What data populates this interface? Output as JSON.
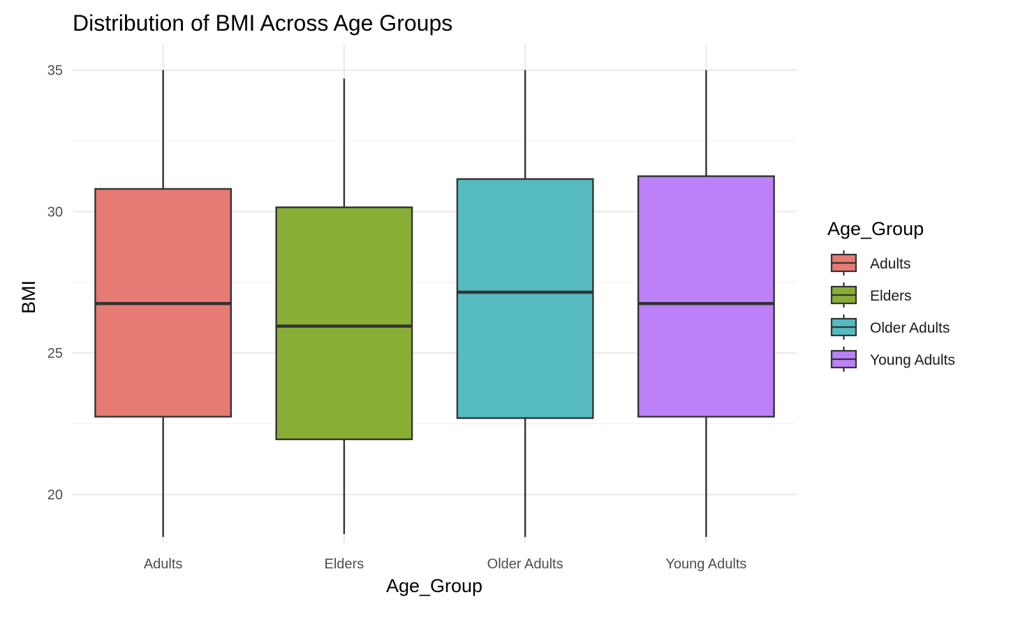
{
  "chart_data": {
    "type": "boxplot",
    "title": "Distribution of BMI Across Age Groups",
    "xlabel": "Age_Group",
    "ylabel": "BMI",
    "ylim": [
      18.3,
      35.9
    ],
    "y_ticks": [
      20,
      25,
      30,
      35
    ],
    "categories": [
      "Adults",
      "Elders",
      "Older Adults",
      "Young Adults"
    ],
    "series": [
      {
        "name": "Adults",
        "color": "#E57B73",
        "min": 18.5,
        "q1": 22.75,
        "median": 26.75,
        "q3": 30.8,
        "max": 35.0
      },
      {
        "name": "Elders",
        "color": "#89AE36",
        "min": 18.6,
        "q1": 21.95,
        "median": 25.95,
        "q3": 30.15,
        "max": 34.7
      },
      {
        "name": "Older Adults",
        "color": "#56BBC1",
        "min": 18.5,
        "q1": 22.7,
        "median": 27.15,
        "q3": 31.15,
        "max": 35.0
      },
      {
        "name": "Young Adults",
        "color": "#BC80F7",
        "min": 18.5,
        "q1": 22.75,
        "median": 26.75,
        "q3": 31.25,
        "max": 35.0
      }
    ],
    "legend": {
      "title": "Age_Group",
      "position": "right"
    },
    "grid": true
  }
}
